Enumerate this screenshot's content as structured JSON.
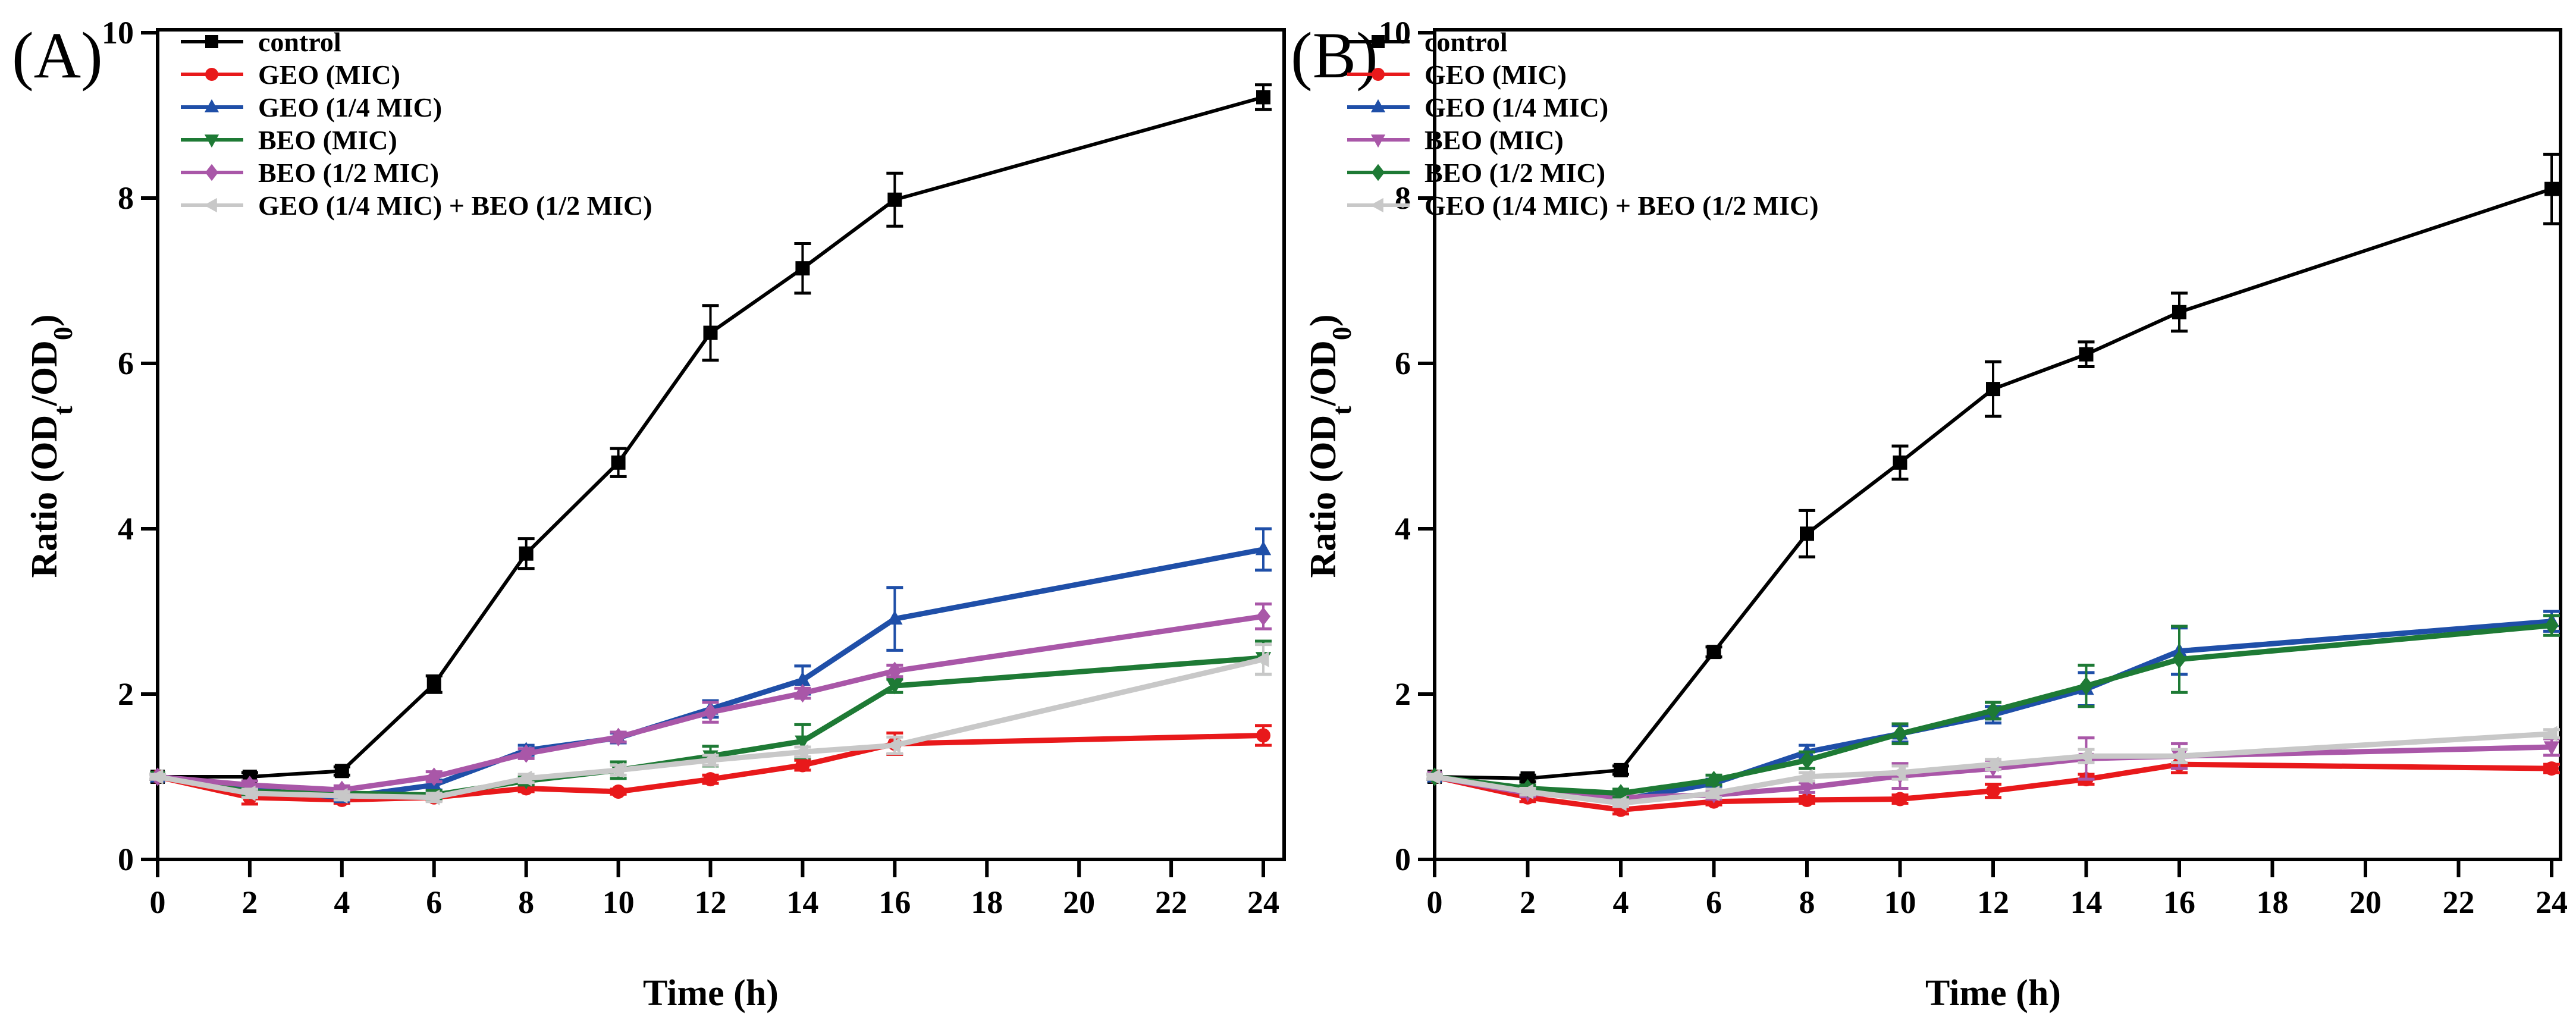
{
  "chart_data": [
    {
      "type": "line",
      "panel_label": "(A)",
      "xlabel": "Time (h)",
      "ylabel": {
        "main": "Ratio (OD",
        "sub1": "t",
        "mid": "/OD",
        "sub2": "0",
        "end": ")"
      },
      "xlim": [
        0,
        24
      ],
      "ylim": [
        0,
        10
      ],
      "xticks": [
        0,
        2,
        4,
        6,
        8,
        10,
        12,
        14,
        16,
        18,
        20,
        22,
        24
      ],
      "yticks": [
        0,
        2,
        4,
        6,
        8,
        10
      ],
      "legend_position": "top-left",
      "x": [
        0,
        2,
        4,
        6,
        8,
        10,
        12,
        14,
        16,
        24
      ],
      "series": [
        {
          "name": "control",
          "color": "#000000",
          "marker": "square",
          "values": [
            1.0,
            1.0,
            1.07,
            2.12,
            3.7,
            4.8,
            6.37,
            7.15,
            7.98,
            9.22
          ],
          "errors": [
            0.03,
            0.05,
            0.05,
            0.1,
            0.18,
            0.17,
            0.33,
            0.3,
            0.32,
            0.15
          ]
        },
        {
          "name": "GEO (MIC)",
          "color": "#e8191b",
          "marker": "circle",
          "values": [
            1.0,
            0.75,
            0.72,
            0.75,
            0.86,
            0.82,
            0.97,
            1.14,
            1.4,
            1.5
          ],
          "errors": [
            0.03,
            0.08,
            0.04,
            0.04,
            0.04,
            0.03,
            0.05,
            0.06,
            0.13,
            0.12
          ]
        },
        {
          "name": "GEO (1/4 MIC)",
          "color": "#1f4fa8",
          "marker": "triangle-up",
          "values": [
            1.0,
            0.85,
            0.75,
            0.9,
            1.32,
            1.47,
            1.82,
            2.17,
            2.91,
            3.75
          ],
          "errors": [
            0.03,
            0.05,
            0.04,
            0.06,
            0.06,
            0.06,
            0.1,
            0.17,
            0.38,
            0.25
          ]
        },
        {
          "name": "BEO (MIC)",
          "color": "#1e7a35",
          "marker": "triangle-down",
          "values": [
            1.0,
            0.82,
            0.8,
            0.78,
            0.95,
            1.08,
            1.25,
            1.43,
            2.1,
            2.44
          ],
          "errors": [
            0.03,
            0.05,
            0.04,
            0.05,
            0.05,
            0.1,
            0.12,
            0.2,
            0.08,
            0.2
          ]
        },
        {
          "name": "BEO (1/2 MIC)",
          "color": "#a957a8",
          "marker": "diamond",
          "values": [
            1.0,
            0.9,
            0.84,
            1.0,
            1.28,
            1.48,
            1.78,
            2.01,
            2.28,
            2.94
          ],
          "errors": [
            0.03,
            0.05,
            0.05,
            0.06,
            0.06,
            0.06,
            0.12,
            0.06,
            0.07,
            0.15
          ]
        },
        {
          "name": "GEO (1/4 MIC) + BEO (1/2 MIC)",
          "color": "#c8c8c8",
          "marker": "triangle-left",
          "values": [
            1.0,
            0.8,
            0.77,
            0.75,
            0.98,
            1.08,
            1.2,
            1.3,
            1.38,
            2.42
          ],
          "errors": [
            0.03,
            0.05,
            0.05,
            0.05,
            0.05,
            0.06,
            0.06,
            0.06,
            0.1,
            0.18
          ]
        }
      ]
    },
    {
      "type": "line",
      "panel_label": "(B)",
      "xlabel": "Time (h)",
      "ylabel": {
        "main": "Ratio (OD",
        "sub1": "t",
        "mid": "/OD",
        "sub2": "0",
        "end": ")"
      },
      "xlim": [
        0,
        24
      ],
      "ylim": [
        0,
        10
      ],
      "xticks": [
        0,
        2,
        4,
        6,
        8,
        10,
        12,
        14,
        16,
        18,
        20,
        22,
        24
      ],
      "yticks": [
        0,
        2,
        4,
        6,
        8,
        10
      ],
      "legend_position": "top-left",
      "x": [
        0,
        2,
        4,
        6,
        8,
        10,
        12,
        14,
        16,
        24
      ],
      "series": [
        {
          "name": "control",
          "color": "#000000",
          "marker": "square",
          "values": [
            1.0,
            0.98,
            1.08,
            2.51,
            3.94,
            4.8,
            5.69,
            6.11,
            6.62,
            8.11
          ],
          "errors": [
            0.03,
            0.04,
            0.05,
            0.06,
            0.28,
            0.2,
            0.33,
            0.15,
            0.23,
            0.42
          ]
        },
        {
          "name": "GEO (MIC)",
          "color": "#e8191b",
          "marker": "circle",
          "values": [
            1.0,
            0.75,
            0.6,
            0.7,
            0.72,
            0.73,
            0.83,
            0.97,
            1.15,
            1.1
          ],
          "errors": [
            0.03,
            0.05,
            0.05,
            0.04,
            0.04,
            0.05,
            0.08,
            0.06,
            0.1,
            0.05
          ]
        },
        {
          "name": "GEO (1/4 MIC)",
          "color": "#1f4fa8",
          "marker": "triangle-up",
          "values": [
            1.0,
            0.84,
            0.72,
            0.92,
            1.3,
            1.52,
            1.75,
            2.06,
            2.52,
            2.88
          ],
          "errors": [
            0.03,
            0.04,
            0.04,
            0.05,
            0.08,
            0.1,
            0.1,
            0.2,
            0.28,
            0.12
          ]
        },
        {
          "name": "BEO (MIC)",
          "color": "#a957a8",
          "marker": "triangle-down",
          "values": [
            1.0,
            0.8,
            0.75,
            0.78,
            0.87,
            1.01,
            1.1,
            1.22,
            1.25,
            1.36
          ],
          "errors": [
            0.03,
            0.04,
            0.05,
            0.05,
            0.06,
            0.15,
            0.1,
            0.25,
            0.15,
            0.1
          ]
        },
        {
          "name": "BEO (1/2 MIC)",
          "color": "#1e7a35",
          "marker": "diamond",
          "values": [
            1.0,
            0.86,
            0.8,
            0.96,
            1.2,
            1.52,
            1.8,
            2.1,
            2.42,
            2.83
          ],
          "errors": [
            0.03,
            0.04,
            0.05,
            0.06,
            0.1,
            0.12,
            0.1,
            0.25,
            0.4,
            0.12
          ]
        },
        {
          "name": "GEO (1/4 MIC) + BEO (1/2 MIC)",
          "color": "#c8c8c8",
          "marker": "triangle-left",
          "values": [
            1.0,
            0.82,
            0.68,
            0.8,
            1.0,
            1.05,
            1.15,
            1.25,
            1.25,
            1.52
          ],
          "errors": [
            0.03,
            0.04,
            0.04,
            0.05,
            0.05,
            0.08,
            0.06,
            0.08,
            0.08,
            0.05
          ]
        }
      ]
    }
  ]
}
